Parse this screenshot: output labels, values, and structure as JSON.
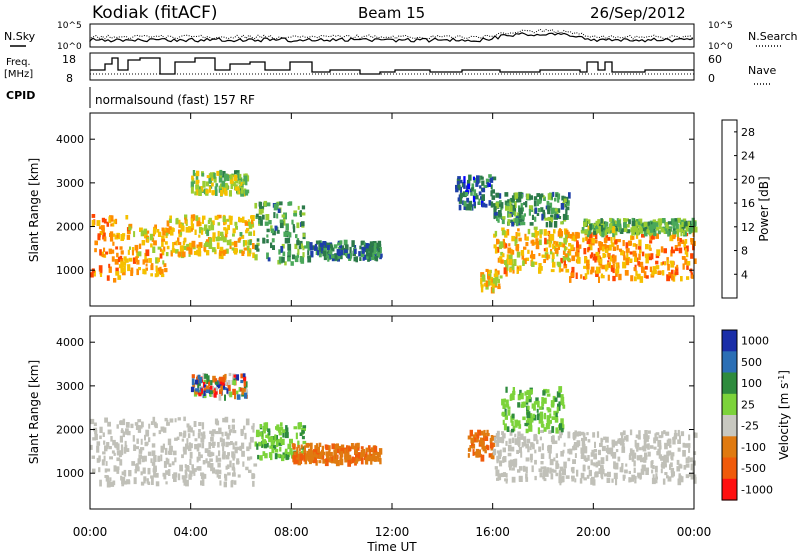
{
  "header": {
    "station": "Kodiak (fitACF)",
    "beam": "Beam 15",
    "date": "26/Sep/2012"
  },
  "panels": {
    "nsky_label": "N.Sky",
    "nsearch_label": "N.Search",
    "freq_label_line1": "Freq.",
    "freq_label_line2": "[MHz]",
    "nave_label": "Nave",
    "cpid_label": "CPID",
    "cpid_text": "normalsound (fast) 157 RF",
    "noise_ticks_left": [
      "10^5",
      "10^0"
    ],
    "noise_ticks_right": [
      "10^5",
      "10^0"
    ],
    "freq_ticks": [
      "18",
      "8"
    ],
    "nave_ticks": [
      "60",
      "0"
    ]
  },
  "colors": {
    "power": [
      "#0000ff",
      "#1e3fa8",
      "#2c7a4a",
      "#4aa85a",
      "#9acd32",
      "#f5c000",
      "#ff8c00",
      "#ff4500",
      "#ff0000"
    ],
    "velocity": [
      "#1a2ea8",
      "#2b6fb5",
      "#2e8b3d",
      "#7cd33a",
      "#c8c8c0",
      "#e07a10",
      "#f05a0a",
      "#ff1010"
    ],
    "ground_scatter": "#c0c0b8"
  },
  "chart_data": [
    {
      "type": "heatmap",
      "title": "Power",
      "xlabel": "",
      "ylabel": "Slant Range [km]",
      "x_ticks": [
        "00:00",
        "04:00",
        "08:00",
        "12:00",
        "16:00",
        "20:00",
        "00:00"
      ],
      "y_ticks": [
        1000,
        2000,
        3000,
        4000
      ],
      "x_range_hours": [
        0,
        24
      ],
      "y_range_km": [
        180,
        4600
      ],
      "colorbar": {
        "label": "Power [dB]",
        "ticks": [
          4,
          8,
          12,
          16,
          20,
          24,
          28
        ],
        "range": [
          0,
          30
        ]
      },
      "scatter_bands": [
        {
          "t0": 0.0,
          "t1": 1.5,
          "r0": 800,
          "r1": 2300,
          "level": 22
        },
        {
          "t0": 1.5,
          "t1": 3.0,
          "r0": 900,
          "r1": 2100,
          "level": 20
        },
        {
          "t0": 3.0,
          "t1": 6.5,
          "r0": 1400,
          "r1": 2300,
          "level": 18
        },
        {
          "t0": 4.0,
          "t1": 6.2,
          "r0": 2800,
          "r1": 3300,
          "level": 14
        },
        {
          "t0": 6.5,
          "t1": 8.5,
          "r0": 1200,
          "r1": 2600,
          "level": 10
        },
        {
          "t0": 8.5,
          "t1": 11.5,
          "r0": 1300,
          "r1": 1700,
          "level": 8
        },
        {
          "t0": 14.5,
          "t1": 16.0,
          "r0": 2500,
          "r1": 3200,
          "level": 6
        },
        {
          "t0": 15.5,
          "t1": 16.3,
          "r0": 600,
          "r1": 1100,
          "level": 18
        },
        {
          "t0": 16.0,
          "t1": 19.0,
          "r0": 1000,
          "r1": 2000,
          "level": 20
        },
        {
          "t0": 16.0,
          "t1": 19.0,
          "r0": 2100,
          "r1": 2800,
          "level": 10
        },
        {
          "t0": 19.0,
          "t1": 24.0,
          "r0": 850,
          "r1": 1900,
          "level": 22
        },
        {
          "t0": 19.5,
          "t1": 24.0,
          "r0": 1900,
          "r1": 2200,
          "level": 12
        }
      ]
    },
    {
      "type": "heatmap",
      "title": "Velocity",
      "xlabel": "Time UT",
      "ylabel": "Slant Range [km]",
      "x_ticks": [
        "00:00",
        "04:00",
        "08:00",
        "12:00",
        "16:00",
        "20:00",
        "00:00"
      ],
      "y_ticks": [
        1000,
        2000,
        3000,
        4000
      ],
      "x_range_hours": [
        0,
        24
      ],
      "y_range_km": [
        180,
        4600
      ],
      "colorbar": {
        "label": "Velocity [m s^-1]",
        "ticks": [
          1000,
          500,
          100,
          25,
          -25,
          -100,
          -500,
          -1000
        ]
      },
      "scatter_bands": [
        {
          "t0": 0.0,
          "t1": 6.5,
          "r0": 800,
          "r1": 2300,
          "kind": "ground"
        },
        {
          "t0": 4.0,
          "t1": 6.2,
          "r0": 2800,
          "r1": 3300,
          "kind": "mixed"
        },
        {
          "t0": 6.5,
          "t1": 8.5,
          "r0": 1400,
          "r1": 2200,
          "kind": "green"
        },
        {
          "t0": 8.0,
          "t1": 11.5,
          "r0": 1300,
          "r1": 1700,
          "kind": "orange"
        },
        {
          "t0": 15.0,
          "t1": 16.0,
          "r0": 1400,
          "r1": 2000,
          "kind": "orange"
        },
        {
          "t0": 16.0,
          "t1": 24.0,
          "r0": 850,
          "r1": 2000,
          "kind": "ground"
        },
        {
          "t0": 16.3,
          "t1": 18.8,
          "r0": 2000,
          "r1": 3000,
          "kind": "green"
        }
      ]
    }
  ]
}
